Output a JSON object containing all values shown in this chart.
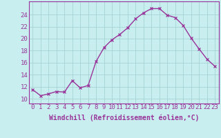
{
  "x": [
    0,
    1,
    2,
    3,
    4,
    5,
    6,
    7,
    8,
    9,
    10,
    11,
    12,
    13,
    14,
    15,
    16,
    17,
    18,
    19,
    20,
    21,
    22,
    23
  ],
  "y": [
    11.5,
    10.5,
    10.8,
    11.2,
    11.1,
    13.0,
    11.8,
    12.2,
    16.2,
    18.5,
    19.8,
    20.7,
    21.8,
    23.3,
    24.3,
    25.0,
    25.0,
    23.9,
    23.5,
    22.2,
    20.1,
    18.3,
    16.6,
    15.4
  ],
  "line_color": "#993399",
  "marker": "x",
  "marker_size": 3,
  "bg_color": "#c8eef0",
  "grid_color": "#a0cdd0",
  "xlabel": "Windchill (Refroidissement éolien,°C)",
  "xlabel_fontsize": 7,
  "ylabel_ticks": [
    10,
    12,
    14,
    16,
    18,
    20,
    22,
    24
  ],
  "ylim": [
    9.2,
    26.2
  ],
  "xlim": [
    -0.5,
    23.5
  ],
  "tick_fontsize": 6.5,
  "linewidth": 1.0,
  "fig_bg_color": "#c8eef0",
  "fig_width": 3.2,
  "fig_height": 2.0,
  "dpi": 100
}
